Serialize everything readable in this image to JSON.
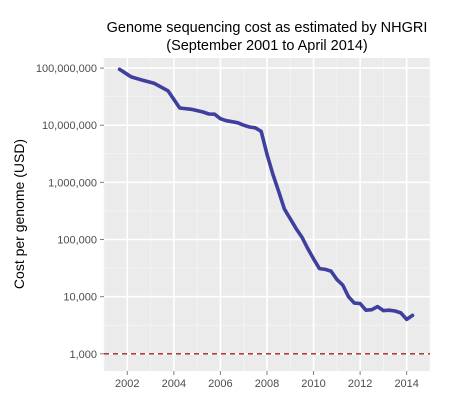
{
  "chart_data": {
    "type": "line",
    "title": "Genome sequencing cost as estimated by NHGRI",
    "subtitle": "(September 2001 to April 2014)",
    "xlabel": "",
    "ylabel": "Cost per genome (USD)",
    "y_scale": "log10",
    "ylim": [
      500,
      150000000
    ],
    "xlim": [
      "2001-01-01",
      "2014-12-31"
    ],
    "x_ticks": [
      "2002",
      "2004",
      "2006",
      "2008",
      "2010",
      "2012",
      "2014"
    ],
    "y_ticks": [
      "1,000",
      "10,000",
      "100,000",
      "1,000,000",
      "10,000,000",
      "100,000,000"
    ],
    "y_tick_values": [
      1000,
      10000,
      100000,
      1000000,
      10000000,
      100000000
    ],
    "grid": true,
    "background": "#ebebeb",
    "line_color": "#3f3f9f",
    "reference_line": {
      "y": 1000,
      "style": "dashed",
      "color": "#a3211f"
    },
    "series": [
      {
        "x": [
          "2001-09",
          "2002-03",
          "2002-09",
          "2003-03",
          "2003-10",
          "2004-04",
          "2004-10",
          "2005-04",
          "2005-07",
          "2005-10",
          "2006-01",
          "2006-04",
          "2006-07",
          "2006-10",
          "2007-01",
          "2007-04",
          "2007-07",
          "2007-10",
          "2008-01",
          "2008-04",
          "2008-07",
          "2008-10",
          "2009-01",
          "2009-04",
          "2009-07",
          "2009-10",
          "2010-01",
          "2010-04",
          "2010-07",
          "2010-10",
          "2011-01",
          "2011-04",
          "2011-07",
          "2011-10",
          "2012-01",
          "2012-04",
          "2012-07",
          "2012-10",
          "2013-01",
          "2013-04",
          "2013-07",
          "2013-10",
          "2014-01",
          "2014-04"
        ],
        "y": [
          95000000,
          70000000,
          61000000,
          54000000,
          40000000,
          20000000,
          19000000,
          17000000,
          15700000,
          15600000,
          13000000,
          12000000,
          11500000,
          11000000,
          10000000,
          9300000,
          9000000,
          7800000,
          3100000,
          1400000,
          700000,
          340000,
          230000,
          155000,
          110000,
          70000,
          46000,
          31000,
          30000,
          28000,
          20000,
          16000,
          10000,
          7700,
          7600,
          5800,
          5900,
          6700,
          5700,
          5800,
          5600,
          5200,
          4000,
          4700
        ]
      }
    ]
  }
}
